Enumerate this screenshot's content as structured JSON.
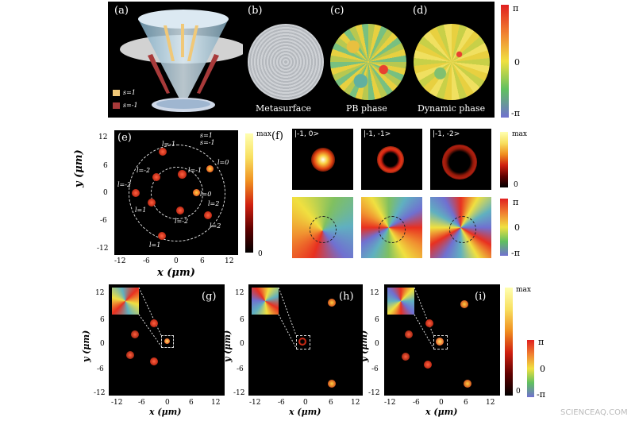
{
  "panels": {
    "a": {
      "label": "(a)",
      "legend": [
        {
          "text": "s=1",
          "color": "#f0c878"
        },
        {
          "text": "s=-1",
          "color": "#a83a3a"
        }
      ]
    },
    "b": {
      "label": "(b)",
      "caption": "Metasurface"
    },
    "c": {
      "label": "(c)",
      "caption": "PB phase"
    },
    "d": {
      "label": "(d)",
      "caption": "Dynamic phase"
    },
    "e": {
      "label": "(e)",
      "legend": [
        "s=1",
        "s=-1"
      ],
      "spot_labels": [
        "l=-1",
        "l=-2",
        "l=-1",
        "l=0",
        "l=-2",
        "l=0",
        "l=1",
        "l=-2",
        "l=1",
        "l=2",
        "l=2"
      ],
      "xlabel": "x (μm)",
      "ylabel": "y (μm)",
      "xticks": [
        "-12",
        "-6",
        "0",
        "6",
        "12"
      ],
      "yticks": [
        "12",
        "6",
        "0",
        "-6",
        "-12"
      ]
    },
    "f": {
      "label": "(f)",
      "states": [
        "|-1, 0>",
        "|-1, -1>",
        "|-1, -2>"
      ]
    },
    "g": {
      "label": "(g)"
    },
    "h": {
      "label": "(h)"
    },
    "i": {
      "label": "(i)"
    },
    "bottom_axes": {
      "xlabel": "x (μm)",
      "ylabel": "y (μm)",
      "xticks": [
        "-12",
        "-6",
        "0",
        "6",
        "12"
      ],
      "yticks": [
        "12",
        "6",
        "0",
        "-6",
        "-12"
      ]
    }
  },
  "colorbars": {
    "phase_top": {
      "top": "π",
      "mid": "0",
      "bottom": "-π"
    },
    "intensity_e": {
      "top": "max",
      "bottom": "0"
    },
    "intensity_f": {
      "top": "max",
      "bottom": "0"
    },
    "phase_f": {
      "top": "π",
      "mid": "0",
      "bottom": "-π"
    },
    "intensity_bottom": {
      "top": "max",
      "bottom": "0"
    },
    "phase_bottom": {
      "top": "π",
      "mid": "0",
      "bottom": "-π"
    }
  },
  "colors": {
    "panel_bg": "#000000",
    "spot": "#e0301a",
    "spot_core": "#ffd040"
  },
  "watermark": "SCIENCEAQ.COM"
}
